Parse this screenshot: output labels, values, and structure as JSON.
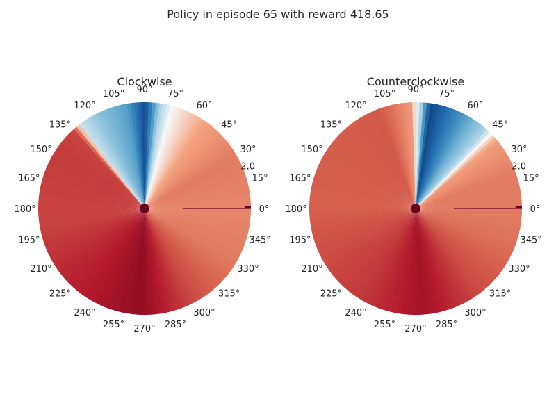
{
  "figure": {
    "title": "Policy in episode 65 with reward 418.65"
  },
  "chart_data": [
    {
      "type": "heatmap",
      "projection": "polar",
      "title": "Clockwise",
      "theta_ticks": [
        "0°",
        "15°",
        "30°",
        "45°",
        "60°",
        "75°",
        "90°",
        "105°",
        "120°",
        "135°",
        "150°",
        "165°",
        "180°",
        "195°",
        "210°",
        "225°",
        "240°",
        "255°",
        "270°",
        "285°",
        "300°",
        "315°",
        "330°",
        "345°"
      ],
      "radial_ticks": [
        "2.0"
      ],
      "grid": false,
      "colormap": "RdBu",
      "color_profile": [
        {
          "theta": 0,
          "value": 0.32
        },
        {
          "theta": 30,
          "value": 0.3
        },
        {
          "theta": 55,
          "value": 0.37
        },
        {
          "theta": 75,
          "value": 0.5
        },
        {
          "theta": 82,
          "value": 0.6
        },
        {
          "theta": 90,
          "value": 0.94
        },
        {
          "theta": 100,
          "value": 0.72
        },
        {
          "theta": 115,
          "value": 0.64
        },
        {
          "theta": 127,
          "value": 0.56
        },
        {
          "theta": 132,
          "value": 0.2
        },
        {
          "theta": 145,
          "value": 0.19
        },
        {
          "theta": 190,
          "value": 0.2
        },
        {
          "theta": 240,
          "value": 0.12
        },
        {
          "theta": 268,
          "value": 0.07
        },
        {
          "theta": 300,
          "value": 0.22
        },
        {
          "theta": 330,
          "value": 0.3
        },
        {
          "theta": 360,
          "value": 0.32
        }
      ],
      "radial_line": {
        "theta": 0,
        "color": "#67001f"
      }
    },
    {
      "type": "heatmap",
      "projection": "polar",
      "title": "Counterclockwise",
      "theta_ticks": [
        "0°",
        "15°",
        "30°",
        "45°",
        "60°",
        "75°",
        "90°",
        "105°",
        "120°",
        "135°",
        "150°",
        "165°",
        "180°",
        "195°",
        "210°",
        "225°",
        "240°",
        "255°",
        "270°",
        "285°",
        "300°",
        "315°",
        "330°",
        "345°"
      ],
      "radial_ticks": [
        "2.0"
      ],
      "grid": false,
      "colormap": "RdBu",
      "color_profile": [
        {
          "theta": 0,
          "value": 0.3
        },
        {
          "theta": 20,
          "value": 0.3
        },
        {
          "theta": 40,
          "value": 0.36
        },
        {
          "theta": 48,
          "value": 0.58
        },
        {
          "theta": 60,
          "value": 0.7
        },
        {
          "theta": 72,
          "value": 0.85
        },
        {
          "theta": 82,
          "value": 0.95
        },
        {
          "theta": 87,
          "value": 0.6
        },
        {
          "theta": 90,
          "value": 0.5
        },
        {
          "theta": 93,
          "value": 0.35
        },
        {
          "theta": 110,
          "value": 0.24
        },
        {
          "theta": 180,
          "value": 0.25
        },
        {
          "theta": 240,
          "value": 0.18
        },
        {
          "theta": 275,
          "value": 0.1
        },
        {
          "theta": 310,
          "value": 0.22
        },
        {
          "theta": 340,
          "value": 0.28
        },
        {
          "theta": 360,
          "value": 0.3
        }
      ],
      "radial_line": {
        "theta": 0,
        "color": "#67001f"
      }
    }
  ]
}
